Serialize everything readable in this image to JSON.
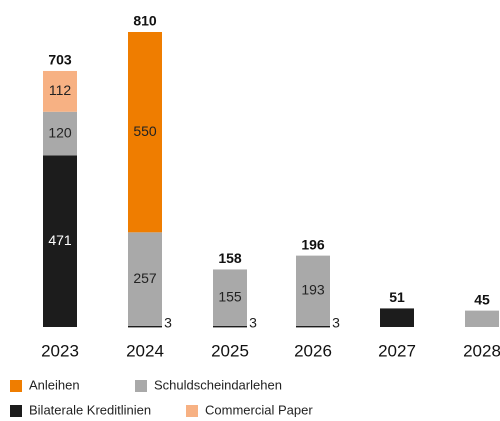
{
  "chart_data": {
    "type": "stacked_bar",
    "categories": [
      "2023",
      "2024",
      "2025",
      "2026",
      "2027",
      "2028"
    ],
    "series": [
      {
        "name": "Anleihen",
        "color": "#ef7d00",
        "values": [
          null,
          550,
          null,
          null,
          null,
          null
        ]
      },
      {
        "name": "Schuldscheindarlehen",
        "color": "#a9a9a9",
        "values": [
          120,
          257,
          155,
          193,
          null,
          45
        ]
      },
      {
        "name": "Bilaterale Kreditlinien",
        "color": "#1c1c1c",
        "values": [
          471,
          3,
          3,
          3,
          51,
          null
        ]
      },
      {
        "name": "Commercial Paper",
        "color": "#f7b183",
        "values": [
          112,
          null,
          null,
          null,
          null,
          null
        ]
      }
    ],
    "totals": [
      703,
      810,
      158,
      196,
      51,
      45
    ]
  }
}
